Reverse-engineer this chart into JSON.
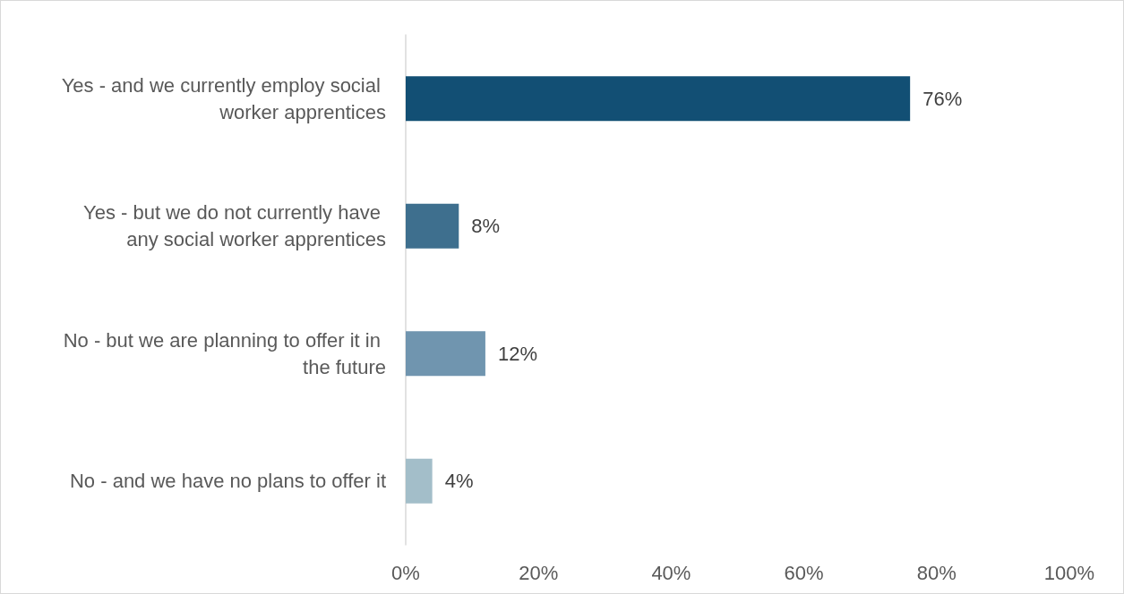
{
  "chart_data": {
    "type": "bar",
    "orientation": "horizontal",
    "categories": [
      "Yes - and we currently employ social worker apprentices",
      "Yes - but we do not currently have any social worker apprentices",
      "No - but we are planning to offer it in the future",
      "No - and we have no plans to offer it"
    ],
    "values": [
      76,
      8,
      12,
      4
    ],
    "colors": [
      "#124f74",
      "#3e6f8e",
      "#7095af",
      "#a3bec9"
    ],
    "value_labels": [
      "76%",
      "8%",
      "12%",
      "4%"
    ],
    "xlim": [
      0,
      100
    ],
    "xticks": [
      {
        "value": 0,
        "label": "0%"
      },
      {
        "value": 20,
        "label": "20%"
      },
      {
        "value": 40,
        "label": "40%"
      },
      {
        "value": 60,
        "label": "60%"
      },
      {
        "value": 80,
        "label": "80%"
      },
      {
        "value": 100,
        "label": "100%"
      }
    ],
    "grid": false
  }
}
